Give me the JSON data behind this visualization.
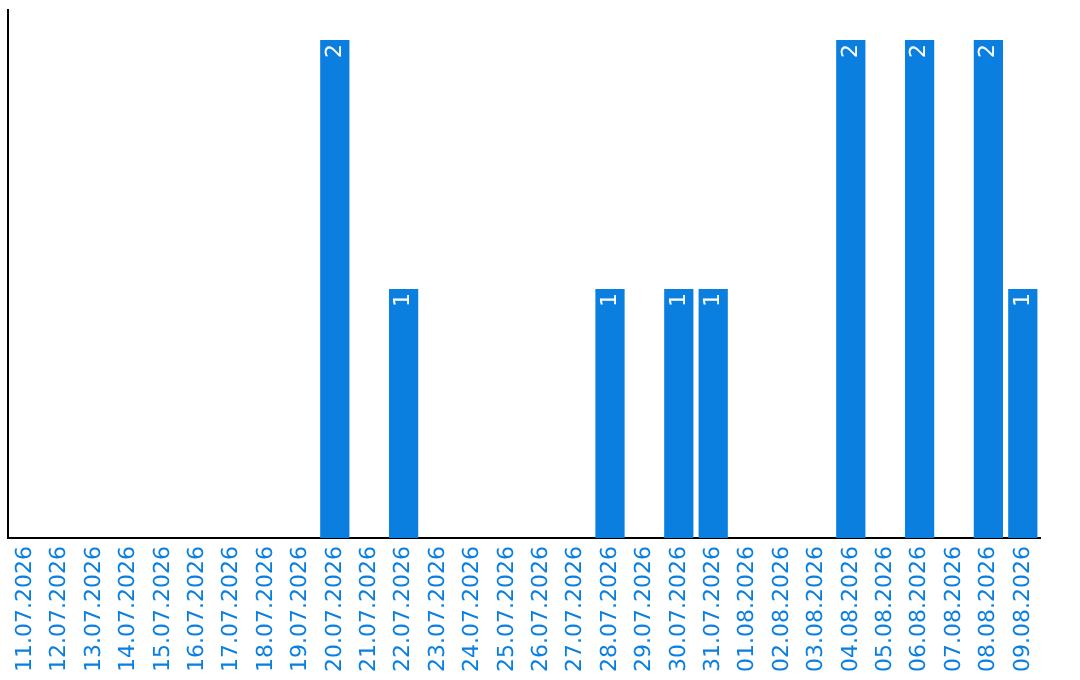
{
  "chart_data": {
    "type": "bar",
    "categories": [
      "11.07.2026",
      "12.07.2026",
      "13.07.2026",
      "14.07.2026",
      "15.07.2026",
      "16.07.2026",
      "17.07.2026",
      "18.07.2026",
      "19.07.2026",
      "20.07.2026",
      "21.07.2026",
      "22.07.2026",
      "23.07.2026",
      "24.07.2026",
      "25.07.2026",
      "26.07.2026",
      "27.07.2026",
      "28.07.2026",
      "29.07.2026",
      "30.07.2026",
      "31.07.2026",
      "01.08.2026",
      "02.08.2026",
      "03.08.2026",
      "04.08.2026",
      "05.08.2026",
      "06.08.2026",
      "07.08.2026",
      "08.08.2026",
      "09.08.2026"
    ],
    "values": [
      0,
      0,
      0,
      0,
      0,
      0,
      0,
      0,
      0,
      2,
      0,
      1,
      0,
      0,
      0,
      0,
      0,
      1,
      0,
      1,
      1,
      0,
      0,
      0,
      2,
      0,
      2,
      0,
      2,
      1
    ],
    "value_labels": [
      null,
      null,
      null,
      null,
      null,
      null,
      null,
      null,
      null,
      "2",
      null,
      "1",
      null,
      null,
      null,
      null,
      null,
      "1",
      null,
      "1",
      "1",
      null,
      null,
      null,
      "2",
      null,
      "2",
      null,
      "2",
      "1"
    ],
    "color": "#0a7fe0",
    "ylim": [
      0,
      2.12
    ],
    "tick_labels": "x",
    "grid": false,
    "legend": false
  }
}
